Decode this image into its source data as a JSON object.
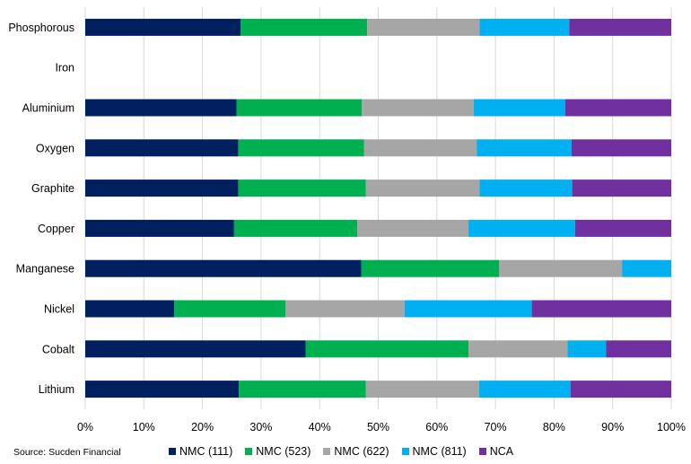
{
  "source": "Source: Sucden Financial",
  "colors": {
    "NMC (111)": "#002060",
    "NMC (523)": "#00B050",
    "NMC (622)": "#A6A6A6",
    "NMC (811)": "#00B0F0",
    "NCA": "#7030A0",
    "gridline": "#D9D9D9"
  },
  "chart_data": {
    "type": "bar",
    "orientation": "horizontal",
    "stacked": "percent",
    "categories": [
      "Phosphorous",
      "Iron",
      "Aluminium",
      "Oxygen",
      "Graphite",
      "Copper",
      "Manganese",
      "Nickel",
      "Cobalt",
      "Lithium"
    ],
    "x_ticks": [
      "0%",
      "10%",
      "20%",
      "30%",
      "40%",
      "50%",
      "60%",
      "70%",
      "80%",
      "90%",
      "100%"
    ],
    "xlim": [
      0,
      100
    ],
    "grid": true,
    "legend_position": "bottom",
    "series": [
      {
        "name": "NMC (111)",
        "values": [
          26.5,
          0,
          25.8,
          26.1,
          26.1,
          25.4,
          47.1,
          15.2,
          37.6,
          26.2
        ]
      },
      {
        "name": "NMC (523)",
        "values": [
          21.6,
          0,
          21.4,
          21.5,
          21.8,
          21.0,
          23.5,
          19.0,
          27.8,
          21.7
        ]
      },
      {
        "name": "NMC (622)",
        "values": [
          19.2,
          0,
          19.1,
          19.2,
          19.4,
          19.0,
          21.0,
          20.3,
          16.9,
          19.3
        ]
      },
      {
        "name": "NMC (811)",
        "values": [
          15.3,
          0,
          15.6,
          16.2,
          15.8,
          18.2,
          8.4,
          21.7,
          6.6,
          15.6
        ]
      },
      {
        "name": "NCA",
        "values": [
          17.4,
          0,
          18.1,
          17.0,
          16.9,
          16.4,
          0,
          23.8,
          11.1,
          17.2
        ]
      }
    ]
  }
}
